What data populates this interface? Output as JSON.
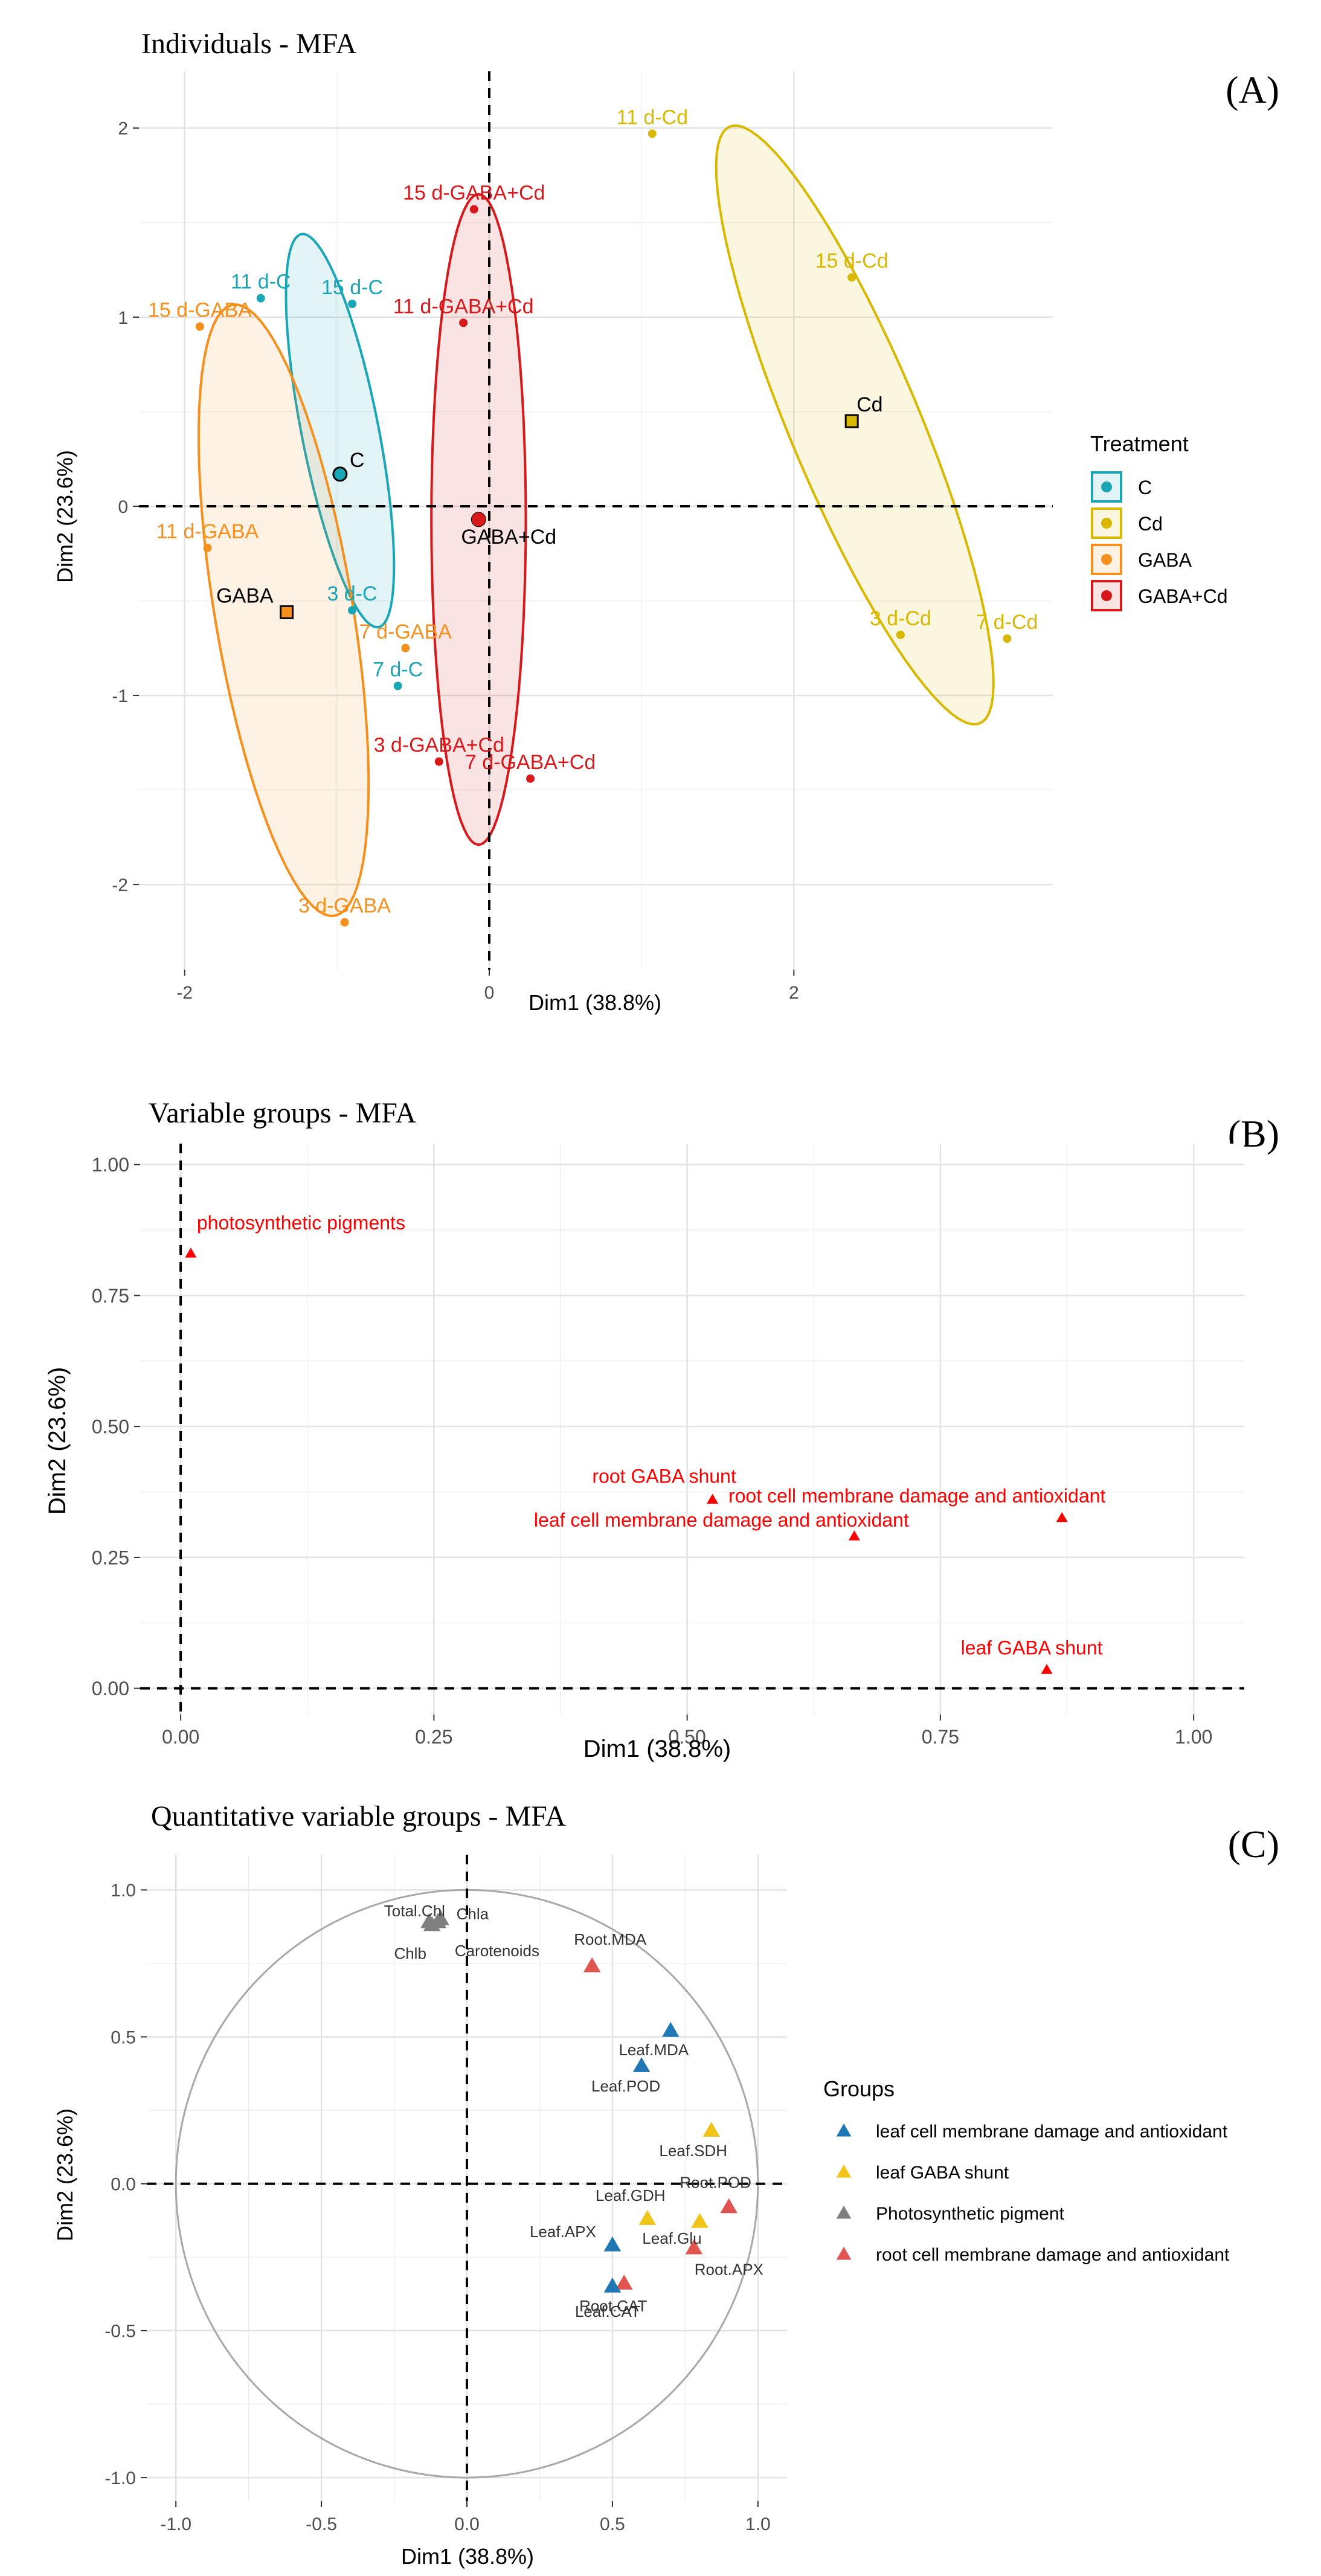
{
  "chart_data": [
    {
      "type": "scatter",
      "panel_label": "(A)",
      "title": "Individuals - MFA",
      "xlabel": "Dim1 (38.8%)",
      "ylabel": "Dim2 (23.6%)",
      "xlim": [
        -2.3,
        3.7
      ],
      "ylim": [
        -2.45,
        2.3
      ],
      "xticks": [
        -2,
        0,
        2
      ],
      "xtick_labels": [
        "-2",
        "0",
        "2"
      ],
      "yticks": [
        -2,
        -1,
        0,
        1,
        2
      ],
      "ytick_labels": [
        "-2",
        "-1",
        "0",
        "1",
        "2"
      ],
      "legend": {
        "title": "Treatment",
        "placement": "right",
        "entries": [
          {
            "name": "C",
            "color": "#1AA6B7"
          },
          {
            "name": "Cd",
            "color": "#D9B800"
          },
          {
            "name": "GABA",
            "color": "#F5901E"
          },
          {
            "name": "GABA+Cd",
            "color": "#D7191C"
          }
        ]
      },
      "groups": [
        {
          "name": "C",
          "color": "#1AA6B7",
          "ellipse": {
            "cx": -0.98,
            "cy": 0.4,
            "rx": 1.07,
            "ry": 0.25,
            "angle_deg": -76
          },
          "centroid": {
            "label": "C",
            "x": -0.98,
            "y": 0.17
          },
          "points": [
            {
              "label": "11 d-C",
              "x": -1.5,
              "y": 1.1
            },
            {
              "label": "15 d-C",
              "x": -0.9,
              "y": 1.07
            },
            {
              "label": "3 d-C",
              "x": -0.9,
              "y": -0.55
            },
            {
              "label": "7 d-C",
              "x": -0.6,
              "y": -0.95
            }
          ]
        },
        {
          "name": "Cd",
          "color": "#D9B800",
          "ellipse": {
            "cx": 2.4,
            "cy": 0.43,
            "rx": 1.78,
            "ry": 0.41,
            "angle_deg": -62
          },
          "centroid": {
            "label": "Cd",
            "x": 2.38,
            "y": 0.45
          },
          "points": [
            {
              "label": "11 d-Cd",
              "x": 1.07,
              "y": 1.97
            },
            {
              "label": "15 d-Cd",
              "x": 2.38,
              "y": 1.21
            },
            {
              "label": "3 d-Cd",
              "x": 2.7,
              "y": -0.68
            },
            {
              "label": "7 d-Cd",
              "x": 3.4,
              "y": -0.7
            }
          ]
        },
        {
          "name": "GABA",
          "color": "#F5901E",
          "ellipse": {
            "cx": -1.35,
            "cy": -0.55,
            "rx": 1.65,
            "ry": 0.45,
            "angle_deg": -78
          },
          "centroid": {
            "label": "GABA",
            "x": -1.33,
            "y": -0.56
          },
          "points": [
            {
              "label": "15 d-GABA",
              "x": -1.9,
              "y": 0.95
            },
            {
              "label": "11 d-GABA",
              "x": -1.85,
              "y": -0.22
            },
            {
              "label": "7 d-GABA",
              "x": -0.55,
              "y": -0.75
            },
            {
              "label": "3 d-GABA",
              "x": -0.95,
              "y": -2.2
            }
          ]
        },
        {
          "name": "GABA+Cd",
          "color": "#D7191C",
          "ellipse": {
            "cx": -0.07,
            "cy": -0.07,
            "rx": 1.72,
            "ry": 0.31,
            "angle_deg": -90
          },
          "centroid": {
            "label": "GABA+Cd",
            "x": -0.07,
            "y": -0.07
          },
          "points": [
            {
              "label": "15 d-GABA+Cd",
              "x": -0.1,
              "y": 1.57
            },
            {
              "label": "11 d-GABA+Cd",
              "x": -0.17,
              "y": 0.97
            },
            {
              "label": "3 d-GABA+Cd",
              "x": -0.33,
              "y": -1.35
            },
            {
              "label": "7 d-GABA+Cd",
              "x": 0.27,
              "y": -1.44
            }
          ]
        }
      ]
    },
    {
      "type": "scatter",
      "panel_label": "(B)",
      "title": "Variable groups - MFA",
      "xlabel": "Dim1 (38.8%)",
      "ylabel": "Dim2 (23.6%)",
      "xlim": [
        -0.04,
        1.05
      ],
      "ylim": [
        -0.05,
        1.04
      ],
      "xticks": [
        0,
        0.25,
        0.5,
        0.75,
        1
      ],
      "xtick_labels": [
        "0.00",
        "0.25",
        "0.50",
        "0.75",
        "1.00"
      ],
      "yticks": [
        0,
        0.25,
        0.5,
        0.75,
        1
      ],
      "ytick_labels": [
        "0.00",
        "0.25",
        "0.50",
        "0.75",
        "1.00"
      ],
      "marker_color": "#FF0000",
      "points": [
        {
          "label": "photosynthetic pigments",
          "x": 0.01,
          "y": 0.83
        },
        {
          "label": "root GABA shunt",
          "x": 0.525,
          "y": 0.36
        },
        {
          "label": "leaf cell membrane damage and antioxidant",
          "x": 0.665,
          "y": 0.29
        },
        {
          "label": "root cell membrane damage and antioxidant",
          "x": 0.87,
          "y": 0.325
        },
        {
          "label": "leaf GABA shunt",
          "x": 0.855,
          "y": 0.035
        }
      ]
    },
    {
      "type": "scatter",
      "panel_label": "(C)",
      "title": "Quantitative variable groups - MFA",
      "xlabel": "Dim1 (38.8%)",
      "ylabel": "Dim2 (23.6%)",
      "xlim": [
        -1.1,
        1.1
      ],
      "ylim": [
        -1.08,
        1.12
      ],
      "xticks": [
        -1,
        -0.5,
        0,
        0.5,
        1
      ],
      "xtick_labels": [
        "-1.0",
        "-0.5",
        "0.0",
        "0.5",
        "1.0"
      ],
      "yticks": [
        -1,
        -0.5,
        0,
        0.5,
        1
      ],
      "ytick_labels": [
        "-1.0",
        "-0.5",
        "0.0",
        "0.5",
        "1.0"
      ],
      "unit_circle": true,
      "legend": {
        "title": "Groups",
        "placement": "right",
        "entries": [
          {
            "name": "leaf cell membrane damage and antioxidant",
            "color": "#1F78B4"
          },
          {
            "name": "leaf GABA shunt",
            "color": "#F0C419"
          },
          {
            "name": "Photosynthetic pigment",
            "color": "#7F7F7F"
          },
          {
            "name": "root cell membrane damage and antioxidant",
            "color": "#E0554F"
          }
        ]
      },
      "points": [
        {
          "label": "Total.Chl",
          "x": -0.13,
          "y": 0.89,
          "group": 2
        },
        {
          "label": "Chla",
          "x": -0.09,
          "y": 0.9,
          "group": 2
        },
        {
          "label": "Chlb",
          "x": -0.12,
          "y": 0.88,
          "group": 2
        },
        {
          "label": "Carotenoids",
          "x": -0.1,
          "y": 0.89,
          "group": 2
        },
        {
          "label": "Root.MDA",
          "x": 0.43,
          "y": 0.74,
          "group": 3
        },
        {
          "label": "Leaf.MDA",
          "x": 0.7,
          "y": 0.52,
          "group": 0
        },
        {
          "label": "Leaf.POD",
          "x": 0.6,
          "y": 0.4,
          "group": 0
        },
        {
          "label": "Leaf.SDH",
          "x": 0.84,
          "y": 0.18,
          "group": 1
        },
        {
          "label": "Root.POD",
          "x": 0.9,
          "y": -0.08,
          "group": 3
        },
        {
          "label": "Leaf.GDH",
          "x": 0.62,
          "y": -0.12,
          "group": 1
        },
        {
          "label": "Leaf.Glu",
          "x": 0.8,
          "y": -0.13,
          "group": 1
        },
        {
          "label": "Leaf.APX",
          "x": 0.5,
          "y": -0.21,
          "group": 0
        },
        {
          "label": "Root.CAT",
          "x": 0.54,
          "y": -0.34,
          "group": 3
        },
        {
          "label": "Root.APX",
          "x": 0.78,
          "y": -0.22,
          "group": 3
        },
        {
          "label": "Leaf.CAT",
          "x": 0.5,
          "y": -0.35,
          "group": 0
        }
      ]
    }
  ]
}
